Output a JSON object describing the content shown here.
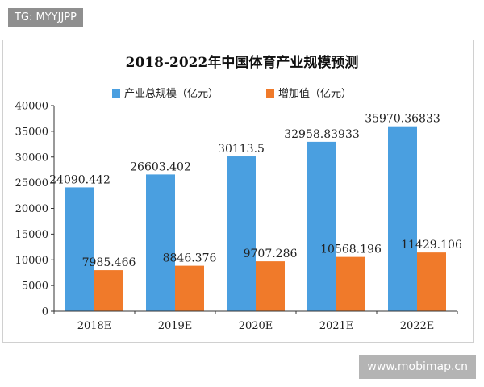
{
  "tag": {
    "text": "TG: MYYJJPP"
  },
  "watermark": {
    "site": "www.mobimap.cn"
  },
  "colors": {
    "series1": "#4a9fe0",
    "series2": "#f07a2a",
    "axis": "#333333"
  },
  "chart_data": {
    "type": "bar",
    "title": "2018-2022年中国体育产业规模预测",
    "xlabel": "",
    "ylabel": "",
    "categories": [
      "2018E",
      "2019E",
      "2020E",
      "2021E",
      "2022E"
    ],
    "series": [
      {
        "name": "产业总规模（亿元）",
        "values": [
          24090.442,
          26603.402,
          30113.5,
          32958.83933,
          35970.36833
        ],
        "labels": [
          "24090.442",
          "26603.402",
          "30113.5",
          "32958.83933",
          "35970.36833"
        ]
      },
      {
        "name": "增加值（亿元）",
        "values": [
          7985.466,
          8846.376,
          9707.286,
          10568.196,
          11429.106
        ],
        "labels": [
          "7985.466",
          "8846.376",
          "9707.286",
          "10568.196",
          "11429.106"
        ]
      }
    ],
    "ylim": [
      0,
      40000
    ],
    "yticks": [
      0,
      5000,
      10000,
      15000,
      20000,
      25000,
      30000,
      35000,
      40000
    ],
    "legend_position": "top-left",
    "grid": false
  }
}
